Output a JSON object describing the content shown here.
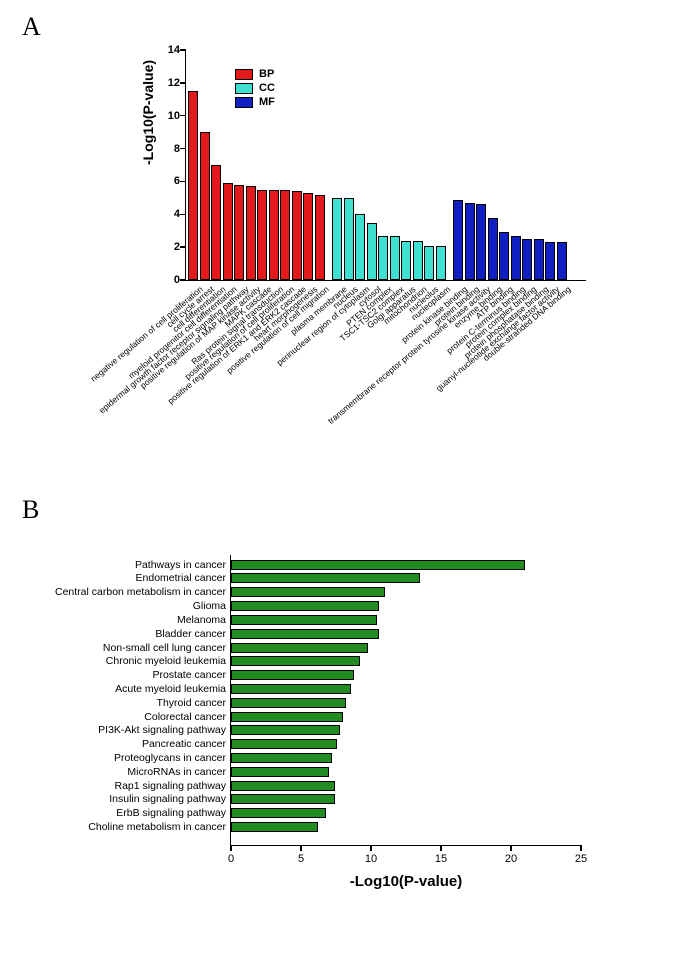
{
  "panelA": {
    "label": "A",
    "ylabel": "-Log10(P-value)",
    "ylim": [
      0,
      14
    ],
    "ytick_step": 2,
    "legend": [
      {
        "key": "BP",
        "color": "#e31a1c"
      },
      {
        "key": "CC",
        "color": "#40e0d0"
      },
      {
        "key": "MF",
        "color": "#1020c0"
      }
    ],
    "bars": [
      {
        "label": "negative regulation of cell proliferation",
        "value": 11.5,
        "group": "BP"
      },
      {
        "label": "cell cycle arrest",
        "value": 9.0,
        "group": "BP"
      },
      {
        "label": "cell differentiation",
        "value": 7.0,
        "group": "BP"
      },
      {
        "label": "myeloid progenitor cell differentiation",
        "value": 5.9,
        "group": "BP"
      },
      {
        "label": "epidermal growth factor receptor signaling pathway",
        "value": 5.8,
        "group": "BP"
      },
      {
        "label": "positive regulation of MAP kinase activity",
        "value": 5.7,
        "group": "BP"
      },
      {
        "label": "MAPK cascade",
        "value": 5.5,
        "group": "BP"
      },
      {
        "label": "Ras protein signal transduction",
        "value": 5.5,
        "group": "BP"
      },
      {
        "label": "positive regulation of cell proliferation",
        "value": 5.5,
        "group": "BP"
      },
      {
        "label": "positive regulation of ERK1 and ERK2 cascade",
        "value": 5.4,
        "group": "BP"
      },
      {
        "label": "heart morphogenesis",
        "value": 5.3,
        "group": "BP"
      },
      {
        "label": "positive regulation of cell migration",
        "value": 5.2,
        "group": "BP"
      },
      {
        "label": "plasma membrane",
        "value": 5.0,
        "group": "CC"
      },
      {
        "label": "nucleus",
        "value": 5.0,
        "group": "CC"
      },
      {
        "label": "perinuclear region of cytoplasm",
        "value": 4.0,
        "group": "CC"
      },
      {
        "label": "cytosol",
        "value": 3.5,
        "group": "CC"
      },
      {
        "label": "PTEN complex",
        "value": 2.7,
        "group": "CC"
      },
      {
        "label": "TSC1-TSC2 complex",
        "value": 2.7,
        "group": "CC"
      },
      {
        "label": "Golgi apparatus",
        "value": 2.4,
        "group": "CC"
      },
      {
        "label": "mitochondrion",
        "value": 2.4,
        "group": "CC"
      },
      {
        "label": "nucleolus",
        "value": 2.1,
        "group": "CC"
      },
      {
        "label": "nucleoplasm",
        "value": 2.1,
        "group": "CC"
      },
      {
        "label": "protein kinase binding",
        "value": 4.9,
        "group": "MF"
      },
      {
        "label": "protein binding",
        "value": 4.7,
        "group": "MF"
      },
      {
        "label": "transmembrane receptor protein tyrosine kinase activity",
        "value": 4.6,
        "group": "MF"
      },
      {
        "label": "enzyme binding",
        "value": 3.8,
        "group": "MF"
      },
      {
        "label": "ATP binding",
        "value": 2.9,
        "group": "MF"
      },
      {
        "label": "protein C-terminus binding",
        "value": 2.7,
        "group": "MF"
      },
      {
        "label": "protein complex binding",
        "value": 2.5,
        "group": "MF"
      },
      {
        "label": "protein phosphatase binding",
        "value": 2.5,
        "group": "MF"
      },
      {
        "label": "guanyl-nucleotide exchange factor activity",
        "value": 2.3,
        "group": "MF"
      },
      {
        "label": "double-stranded DNA binding",
        "value": 2.3,
        "group": "MF"
      }
    ]
  },
  "panelB": {
    "label": "B",
    "xlabel": "-Log10(P-value)",
    "xlim": [
      0,
      25
    ],
    "xtick_step": 5,
    "bar_color": "#228b22",
    "bars": [
      {
        "label": "Pathways in cancer",
        "value": 21.0
      },
      {
        "label": "Endometrial cancer",
        "value": 13.5
      },
      {
        "label": "Central carbon metabolism in cancer",
        "value": 11.0
      },
      {
        "label": "Glioma",
        "value": 10.6
      },
      {
        "label": "Melanoma",
        "value": 10.4
      },
      {
        "label": "Bladder cancer",
        "value": 10.6
      },
      {
        "label": "Non-small cell lung cancer",
        "value": 9.8
      },
      {
        "label": "Chronic myeloid leukemia",
        "value": 9.2
      },
      {
        "label": "Prostate cancer",
        "value": 8.8
      },
      {
        "label": "Acute myeloid leukemia",
        "value": 8.6
      },
      {
        "label": "Thyroid cancer",
        "value": 8.2
      },
      {
        "label": "Colorectal cancer",
        "value": 8.0
      },
      {
        "label": "PI3K-Akt signaling pathway",
        "value": 7.8
      },
      {
        "label": "Pancreatic cancer",
        "value": 7.6
      },
      {
        "label": "Proteoglycans in cancer",
        "value": 7.2
      },
      {
        "label": "MicroRNAs in cancer",
        "value": 7.0
      },
      {
        "label": "Rap1 signaling pathway",
        "value": 7.4
      },
      {
        "label": "Insulin signaling pathway",
        "value": 7.4
      },
      {
        "label": "ErbB signaling pathway",
        "value": 6.8
      },
      {
        "label": "Choline metabolism in cancer",
        "value": 6.2
      }
    ]
  }
}
